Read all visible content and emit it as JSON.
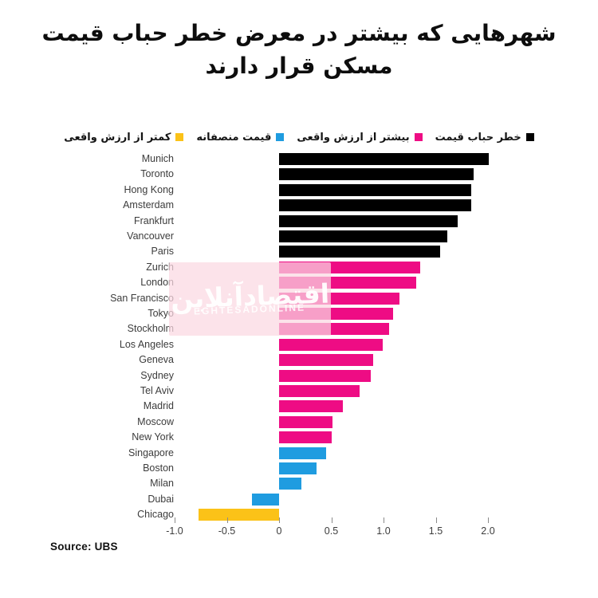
{
  "title": "شهرهایی که بیشتر در معرض خطر حباب قیمت مسکن قرار دارند",
  "source": {
    "label": "Source: UBS"
  },
  "watermark": {
    "persian": "اقتصادآنلاین",
    "latin": "EGHTESADONLINE"
  },
  "colors": {
    "bubble_risk": "#000000",
    "overvalued": "#ee0c84",
    "fair_valued": "#1f9ce0",
    "undervalued": "#fbc218"
  },
  "legend": [
    {
      "key": "bubble_risk",
      "label": "خطر حباب قیمت",
      "color": "#000000"
    },
    {
      "key": "overvalued",
      "label": "بیشتر از ارزش واقعی",
      "color": "#ee0c84"
    },
    {
      "key": "fair_valued",
      "label": "قیمت منصفانه",
      "color": "#1f9ce0"
    },
    {
      "key": "undervalued",
      "label": "کمتر از ارزش واقعی",
      "color": "#fbc218"
    }
  ],
  "chart_data": {
    "type": "bar",
    "orientation": "horizontal",
    "title": "شهرهایی که بیشتر در معرض خطر حباب قیمت مسکن قرار دارند",
    "xlabel": "",
    "ylabel": "",
    "xlim": [
      -1.05,
      2.15
    ],
    "grid": false,
    "legend_position": "top",
    "x_ticks": [
      {
        "value": -1.0,
        "label": "-1.0"
      },
      {
        "value": -0.5,
        "label": "-0.5"
      },
      {
        "value": 0,
        "label": "0"
      },
      {
        "value": 0.5,
        "label": "0.5"
      },
      {
        "value": 1.0,
        "label": "1.0"
      },
      {
        "value": 1.5,
        "label": "1.5"
      },
      {
        "value": 2.0,
        "label": "2.0"
      }
    ],
    "bars": [
      {
        "city": "Munich",
        "value": 2.01,
        "category": "bubble_risk"
      },
      {
        "city": "Toronto",
        "value": 1.86,
        "category": "bubble_risk"
      },
      {
        "city": "Hong Kong",
        "value": 1.84,
        "category": "bubble_risk"
      },
      {
        "city": "Amsterdam",
        "value": 1.84,
        "category": "bubble_risk"
      },
      {
        "city": "Frankfurt",
        "value": 1.71,
        "category": "bubble_risk"
      },
      {
        "city": "Vancouver",
        "value": 1.61,
        "category": "bubble_risk"
      },
      {
        "city": "Paris",
        "value": 1.54,
        "category": "bubble_risk"
      },
      {
        "city": "Zurich",
        "value": 1.35,
        "category": "overvalued"
      },
      {
        "city": "London",
        "value": 1.31,
        "category": "overvalued"
      },
      {
        "city": "San Francisco",
        "value": 1.15,
        "category": "overvalued"
      },
      {
        "city": "Tokyo",
        "value": 1.09,
        "category": "overvalued"
      },
      {
        "city": "Stockholm",
        "value": 1.05,
        "category": "overvalued"
      },
      {
        "city": "Los Angeles",
        "value": 0.99,
        "category": "overvalued"
      },
      {
        "city": "Geneva",
        "value": 0.9,
        "category": "overvalued"
      },
      {
        "city": "Sydney",
        "value": 0.88,
        "category": "overvalued"
      },
      {
        "city": "Tel Aviv",
        "value": 0.77,
        "category": "overvalued"
      },
      {
        "city": "Madrid",
        "value": 0.61,
        "category": "overvalued"
      },
      {
        "city": "Moscow",
        "value": 0.51,
        "category": "overvalued"
      },
      {
        "city": "New York",
        "value": 0.5,
        "category": "overvalued"
      },
      {
        "city": "Singapore",
        "value": 0.45,
        "category": "fair_valued"
      },
      {
        "city": "Boston",
        "value": 0.36,
        "category": "fair_valued"
      },
      {
        "city": "Milan",
        "value": 0.21,
        "category": "fair_valued"
      },
      {
        "city": "Dubai",
        "value": -0.26,
        "category": "fair_valued"
      },
      {
        "city": "Chicago",
        "value": -0.77,
        "category": "undervalued"
      }
    ]
  }
}
